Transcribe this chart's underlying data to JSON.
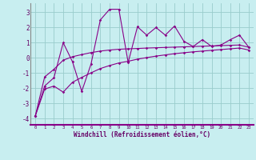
{
  "bg_color": "#c8eef0",
  "line_color": "#880088",
  "grid_color": "#99cccc",
  "xlabel": "Windchill (Refroidissement éolien,°C)",
  "x_data": [
    0,
    1,
    2,
    3,
    4,
    5,
    6,
    7,
    8,
    9,
    10,
    11,
    12,
    13,
    14,
    15,
    16,
    17,
    18,
    19,
    20,
    21,
    22,
    23
  ],
  "y_main": [
    -3.8,
    -1.85,
    -1.3,
    1.0,
    -0.25,
    -2.2,
    -0.4,
    2.5,
    3.2,
    3.2,
    -0.3,
    2.05,
    1.5,
    2.0,
    1.5,
    2.1,
    1.1,
    0.75,
    1.2,
    0.75,
    0.85,
    1.2,
    1.5,
    0.7
  ],
  "y_upper": [
    -3.8,
    -1.25,
    -0.75,
    -0.15,
    0.08,
    0.22,
    0.35,
    0.45,
    0.52,
    0.57,
    0.6,
    0.62,
    0.65,
    0.67,
    0.69,
    0.71,
    0.73,
    0.75,
    0.77,
    0.79,
    0.81,
    0.83,
    0.85,
    0.7
  ],
  "y_lower": [
    -3.8,
    -2.05,
    -1.85,
    -2.25,
    -1.6,
    -1.28,
    -0.98,
    -0.7,
    -0.5,
    -0.33,
    -0.22,
    -0.08,
    0.02,
    0.12,
    0.2,
    0.28,
    0.34,
    0.4,
    0.45,
    0.5,
    0.55,
    0.6,
    0.65,
    0.52
  ],
  "yticks": [
    -4,
    -3,
    -2,
    -1,
    0,
    1,
    2,
    3
  ],
  "xticks": [
    0,
    1,
    2,
    3,
    4,
    5,
    6,
    7,
    8,
    9,
    10,
    11,
    12,
    13,
    14,
    15,
    16,
    17,
    18,
    19,
    20,
    21,
    22,
    23
  ],
  "ylim": [
    -4.4,
    3.6
  ],
  "xlim": [
    -0.5,
    23.5
  ]
}
